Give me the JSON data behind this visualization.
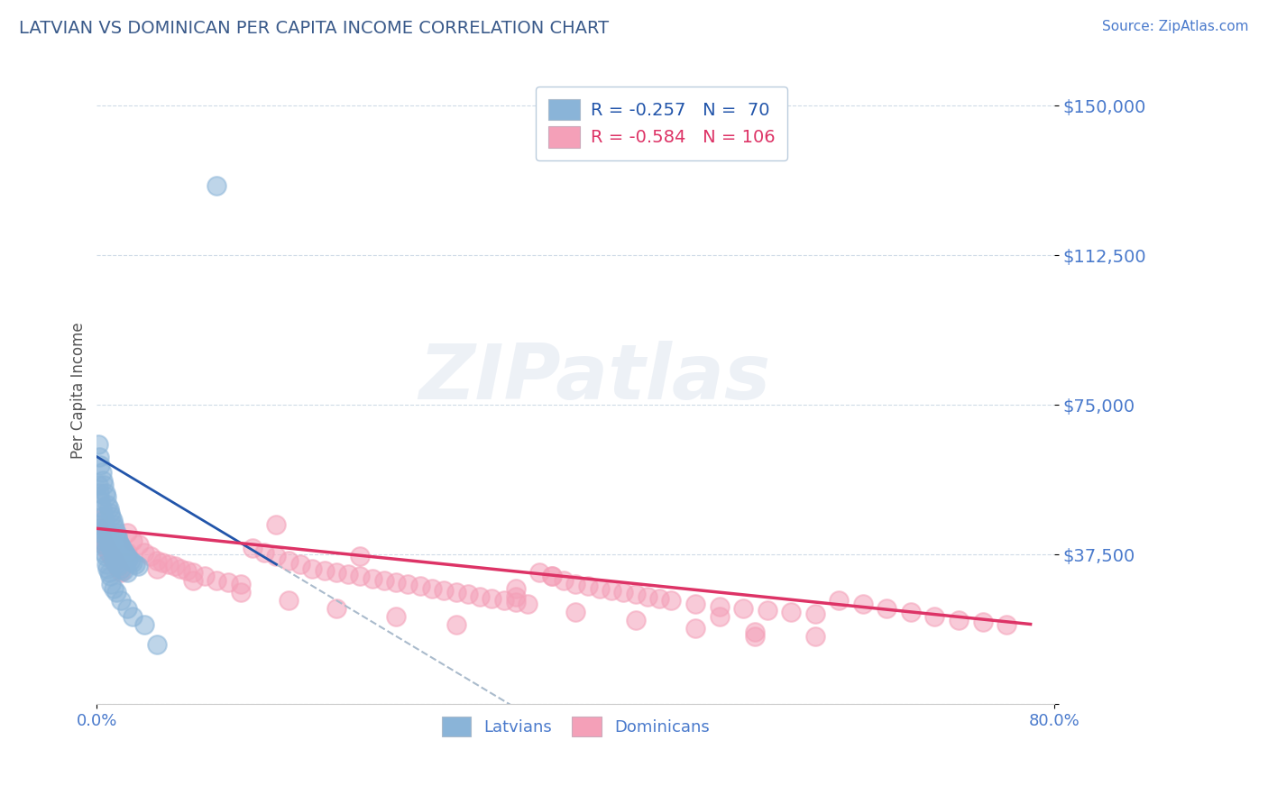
{
  "title": "LATVIAN VS DOMINICAN PER CAPITA INCOME CORRELATION CHART",
  "source": "Source: ZipAtlas.com",
  "ylabel": "Per Capita Income",
  "xlim": [
    0.0,
    0.8
  ],
  "ylim": [
    0,
    157000
  ],
  "yticks": [
    0,
    37500,
    75000,
    112500,
    150000
  ],
  "ytick_labels": [
    "",
    "$37,500",
    "$75,000",
    "$112,500",
    "$150,000"
  ],
  "xticks": [
    0.0,
    0.8
  ],
  "xtick_labels": [
    "0.0%",
    "80.0%"
  ],
  "latvian_color": "#8ab4d8",
  "dominican_color": "#f4a0b8",
  "latvian_line_color": "#2255aa",
  "dominican_line_color": "#dd3366",
  "dashed_line_color": "#aabbcc",
  "title_color": "#3a5a8a",
  "tick_color": "#4a7acc",
  "legend_R_latvian": "-0.257",
  "legend_N_latvian": "70",
  "legend_R_dominican": "-0.584",
  "legend_N_dominican": "106",
  "watermark_text": "ZIPatlas",
  "latvian_x": [
    0.001,
    0.002,
    0.003,
    0.004,
    0.005,
    0.006,
    0.007,
    0.008,
    0.009,
    0.01,
    0.011,
    0.012,
    0.013,
    0.014,
    0.015,
    0.016,
    0.017,
    0.018,
    0.019,
    0.02,
    0.021,
    0.022,
    0.023,
    0.024,
    0.025,
    0.026,
    0.028,
    0.03,
    0.032,
    0.034,
    0.001,
    0.002,
    0.003,
    0.004,
    0.005,
    0.006,
    0.007,
    0.008,
    0.009,
    0.01,
    0.011,
    0.012,
    0.013,
    0.014,
    0.015,
    0.016,
    0.018,
    0.02,
    0.022,
    0.025,
    0.001,
    0.002,
    0.003,
    0.004,
    0.005,
    0.006,
    0.007,
    0.008,
    0.009,
    0.01,
    0.011,
    0.012,
    0.014,
    0.016,
    0.02,
    0.025,
    0.03,
    0.04,
    0.05,
    0.1
  ],
  "latvian_y": [
    65000,
    62000,
    60000,
    58000,
    56000,
    55000,
    53000,
    52000,
    50000,
    49000,
    48000,
    47000,
    46000,
    45000,
    44000,
    43000,
    42000,
    41000,
    40000,
    39500,
    39000,
    38500,
    38000,
    37500,
    37000,
    36500,
    36000,
    35500,
    35000,
    34500,
    55000,
    53000,
    51000,
    49000,
    47000,
    46000,
    44000,
    43000,
    41000,
    40000,
    39500,
    39000,
    38000,
    37000,
    36000,
    35000,
    34500,
    34000,
    33500,
    33000,
    45000,
    44000,
    43000,
    41000,
    40000,
    38000,
    37000,
    35000,
    34000,
    33000,
    32000,
    30000,
    29000,
    28000,
    26000,
    24000,
    22000,
    20000,
    15000,
    130000
  ],
  "dominican_x": [
    0.001,
    0.002,
    0.003,
    0.004,
    0.005,
    0.006,
    0.007,
    0.008,
    0.009,
    0.01,
    0.011,
    0.012,
    0.013,
    0.014,
    0.015,
    0.016,
    0.017,
    0.018,
    0.019,
    0.02,
    0.025,
    0.03,
    0.035,
    0.04,
    0.045,
    0.05,
    0.055,
    0.06,
    0.065,
    0.07,
    0.075,
    0.08,
    0.09,
    0.1,
    0.11,
    0.12,
    0.13,
    0.14,
    0.15,
    0.16,
    0.17,
    0.18,
    0.19,
    0.2,
    0.21,
    0.22,
    0.23,
    0.24,
    0.25,
    0.26,
    0.27,
    0.28,
    0.29,
    0.3,
    0.31,
    0.32,
    0.33,
    0.34,
    0.35,
    0.36,
    0.37,
    0.38,
    0.39,
    0.4,
    0.41,
    0.42,
    0.43,
    0.44,
    0.45,
    0.46,
    0.47,
    0.48,
    0.5,
    0.52,
    0.54,
    0.56,
    0.58,
    0.6,
    0.62,
    0.64,
    0.66,
    0.68,
    0.7,
    0.72,
    0.74,
    0.76,
    0.025,
    0.05,
    0.08,
    0.12,
    0.16,
    0.2,
    0.25,
    0.3,
    0.35,
    0.4,
    0.45,
    0.5,
    0.55,
    0.6,
    0.15,
    0.35,
    0.55,
    0.52,
    0.38,
    0.22
  ],
  "dominican_y": [
    46000,
    44000,
    43000,
    42000,
    41000,
    40000,
    39500,
    39000,
    38500,
    38000,
    37500,
    37000,
    36500,
    36000,
    35500,
    35000,
    34500,
    34000,
    33500,
    33000,
    43000,
    41000,
    40000,
    38000,
    37000,
    36000,
    35500,
    35000,
    34500,
    34000,
    33500,
    33000,
    32000,
    31000,
    30500,
    30000,
    39000,
    38000,
    37000,
    36000,
    35000,
    34000,
    33500,
    33000,
    32500,
    32000,
    31500,
    31000,
    30500,
    30000,
    29500,
    29000,
    28500,
    28000,
    27500,
    27000,
    26500,
    26000,
    25500,
    25000,
    33000,
    32000,
    31000,
    30000,
    29500,
    29000,
    28500,
    28000,
    27500,
    27000,
    26500,
    26000,
    25000,
    24500,
    24000,
    23500,
    23000,
    22500,
    26000,
    25000,
    24000,
    23000,
    22000,
    21000,
    20500,
    20000,
    38000,
    34000,
    31000,
    28000,
    26000,
    24000,
    22000,
    20000,
    27000,
    23000,
    21000,
    19000,
    18000,
    17000,
    45000,
    29000,
    17000,
    22000,
    32000,
    37000
  ]
}
